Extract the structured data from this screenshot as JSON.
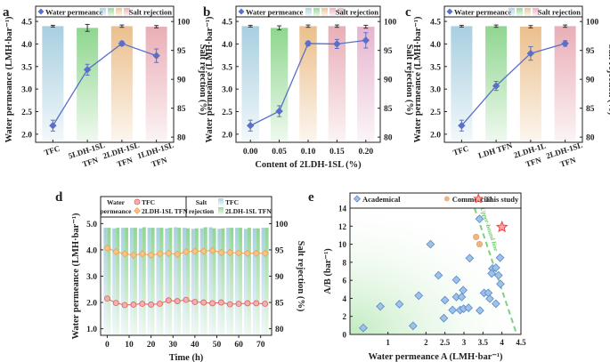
{
  "colors": {
    "line": "#5a6fc8",
    "tfc_d": "#e06060",
    "tfn_d": "#f0a050",
    "bar_blue": "#a8cfe0",
    "bar_green": "#8fd68f",
    "bar_orange": "#ebbf8c",
    "bar_pink": "#e9aeb6",
    "bar_purple": "#e6b5cf",
    "academical": "#9ec3e8",
    "commercial": "#f2b37f",
    "star": "#e84848",
    "bound": "#7fd07f"
  },
  "chart_data": [
    {
      "panel": "a",
      "type": "bar+line",
      "categories": [
        [
          "TFC"
        ],
        [
          "5LDH-1SL",
          "TFN"
        ],
        [
          "2LDH-1SL",
          "TFN"
        ],
        [
          "1LDH-1SL",
          "TFN"
        ]
      ],
      "rotate_labels": true,
      "xlabel": "",
      "ylabel": "Water permeance (LMH·bar⁻¹)",
      "y2label": "Salt rejection (%)",
      "ylim": [
        1.82,
        4.6
      ],
      "y2lim": [
        79.1,
        100.8
      ],
      "yticks": [
        "2.0",
        "2.5",
        "3.0",
        "3.5",
        "4.0",
        "4.5"
      ],
      "y2ticks": [
        "80",
        "85",
        "90",
        "95",
        "100"
      ],
      "legend": {
        "line": "Water permeance",
        "bars": "Salt rejection"
      },
      "bar_colors": [
        "#a8cfe0",
        "#8fd68f",
        "#ebbf8c",
        "#e9aeb6"
      ],
      "salt_rejection": [
        99.2,
        98.9,
        99.2,
        99.1
      ],
      "salt_rejection_err": [
        0.15,
        0.6,
        0.2,
        0.2
      ],
      "water_permeance": [
        2.19,
        3.43,
        4.01,
        3.74
      ],
      "water_permeance_err": [
        0.12,
        0.12,
        0.05,
        0.15
      ]
    },
    {
      "panel": "b",
      "type": "bar+line",
      "categories": [
        [
          "0.00"
        ],
        [
          "0.05"
        ],
        [
          "0.10"
        ],
        [
          "0.15"
        ],
        [
          "0.20"
        ]
      ],
      "rotate_labels": false,
      "xlabel": "Content of 2LDH-1SL (%)",
      "ylabel": "Water permeance (LMH·bar⁻¹)",
      "y2label": "Salt rejection (%)",
      "ylim": [
        1.82,
        4.6
      ],
      "y2lim": [
        79.1,
        100.8
      ],
      "yticks": [
        "2.0",
        "2.5",
        "3.0",
        "3.5",
        "4.0",
        "4.5"
      ],
      "y2ticks": [
        "80",
        "85",
        "90",
        "95",
        "100"
      ],
      "legend": {
        "line": "Water permeance",
        "bars": "Salt rejection"
      },
      "bar_colors": [
        "#a8cfe0",
        "#8fd68f",
        "#ebbf8c",
        "#e9aeb6",
        "#e6b5cf"
      ],
      "salt_rejection": [
        99.2,
        98.9,
        99.2,
        99.2,
        99.1
      ],
      "salt_rejection_err": [
        0.15,
        0.35,
        0.2,
        0.2,
        0.25
      ],
      "water_permeance": [
        2.19,
        2.51,
        4.01,
        4.0,
        4.08
      ],
      "water_permeance_err": [
        0.12,
        0.12,
        0.05,
        0.1,
        0.17
      ]
    },
    {
      "panel": "c",
      "type": "bar+line",
      "categories": [
        [
          "TFC"
        ],
        [
          "LDH TFN"
        ],
        [
          "2LDH-1L",
          "TFN"
        ],
        [
          "2LDH-1SL",
          "TFN"
        ]
      ],
      "rotate_labels": true,
      "xlabel": "",
      "ylabel": "Water permeance (LMH·bar⁻¹)",
      "y2label": "Salt rejection (%)",
      "ylim": [
        1.82,
        4.6
      ],
      "y2lim": [
        79.1,
        100.8
      ],
      "yticks": [
        "2.0",
        "2.5",
        "3.0",
        "3.5",
        "4.0",
        "4.5"
      ],
      "y2ticks": [
        "80",
        "85",
        "90",
        "95",
        "100"
      ],
      "legend": {
        "line": "Water permeance",
        "bars": "Salt rejection"
      },
      "bar_colors": [
        "#a8cfe0",
        "#8fd68f",
        "#ebbf8c",
        "#e9aeb6"
      ],
      "salt_rejection": [
        99.2,
        99.2,
        99.1,
        99.2
      ],
      "salt_rejection_err": [
        0.15,
        0.2,
        0.2,
        0.2
      ],
      "water_permeance": [
        2.19,
        3.07,
        3.79,
        4.01
      ],
      "water_permeance_err": [
        0.12,
        0.1,
        0.15,
        0.06
      ]
    },
    {
      "panel": "d",
      "type": "bar+line",
      "xlabel": "Time (h)",
      "ylabel": "Water permeance (LMH·bar⁻¹)",
      "y2label": "Salt rejection (%)",
      "ylim": [
        0.75,
        5.25
      ],
      "y2lim": [
        78.75,
        101.25
      ],
      "xlim": [
        -3,
        75
      ],
      "xticks": [
        0,
        10,
        20,
        30,
        40,
        50,
        60,
        70
      ],
      "yticks": [
        "1.0",
        "2.0",
        "3.0",
        "4.0",
        "5.0"
      ],
      "y2ticks": [
        "80",
        "85",
        "90",
        "95",
        "100"
      ],
      "legend": {
        "line_title": "Water permeance",
        "bar_title": "Salt rejection",
        "tfc": "TFC",
        "tfn": "2LDH-1SL TFN"
      },
      "time": [
        0,
        4,
        8,
        12,
        16,
        20,
        24,
        28,
        32,
        36,
        40,
        44,
        48,
        52,
        56,
        60,
        64,
        68,
        72
      ],
      "series": [
        {
          "name": "TFC",
          "water_permeance": [
            2.15,
            1.98,
            1.9,
            1.92,
            1.95,
            1.92,
            1.95,
            2.08,
            2.05,
            2.1,
            2.02,
            2.0,
            1.97,
            2.0,
            1.93,
            1.95,
            1.97,
            1.97,
            1.95
          ],
          "salt_rejection": [
            99.2,
            99.1,
            99.2,
            99.2,
            99.1,
            99.2,
            99.2,
            99.1,
            99.3,
            99.2,
            99.0,
            99.1,
            99.3,
            99.0,
            99.2,
            99.2,
            99.0,
            99.1,
            99.2
          ]
        },
        {
          "name": "2LDH-1SL TFN",
          "water_permeance": [
            4.07,
            3.93,
            3.85,
            3.8,
            3.85,
            3.8,
            3.85,
            3.87,
            3.83,
            3.93,
            3.95,
            3.95,
            3.98,
            3.9,
            3.9,
            3.88,
            3.87,
            3.87,
            3.87
          ],
          "salt_rejection": [
            99.2,
            99.2,
            99.2,
            99.2,
            99.3,
            99.2,
            99.2,
            99.2,
            99.2,
            99.1,
            99.1,
            99.3,
            99.1,
            99.1,
            99.2,
            99.2,
            99.2,
            99.1,
            99.2
          ]
        }
      ]
    },
    {
      "panel": "e",
      "type": "scatter",
      "xlabel": "Water permeance A (LMH·bar⁻¹)",
      "ylabel": "A/B (bar⁻¹)",
      "xlim": [
        0,
        4.5
      ],
      "ylim": [
        0,
        14
      ],
      "xticks": [
        "1",
        "2",
        "2.5",
        "3",
        "3.5",
        "4",
        "4.5"
      ],
      "yticks": [
        "0",
        "2",
        "4",
        "6",
        "8",
        "10",
        "12",
        "14"
      ],
      "annotation": "Upper-bound line",
      "upper_bound": [
        [
          3.28,
          14
        ],
        [
          4.39,
          0
        ]
      ],
      "series": [
        {
          "name": "Academical",
          "points": [
            [
              0.35,
              0.72
            ],
            [
              0.8,
              3.1
            ],
            [
              1.3,
              3.35
            ],
            [
              1.66,
              0.95
            ],
            [
              1.81,
              4.3
            ],
            [
              2.12,
              10.0
            ],
            [
              2.33,
              6.55
            ],
            [
              2.5,
              3.8
            ],
            [
              2.47,
              1.8
            ],
            [
              2.7,
              2.7
            ],
            [
              2.8,
              6.05
            ],
            [
              2.8,
              4.15
            ],
            [
              2.9,
              2.7
            ],
            [
              2.94,
              4.15
            ],
            [
              2.98,
              4.9
            ],
            [
              2.99,
              2.85
            ],
            [
              3.12,
              2.95
            ],
            [
              3.15,
              8.45
            ],
            [
              3.41,
              12.8
            ],
            [
              3.42,
              2.65
            ],
            [
              3.53,
              4.6
            ],
            [
              3.64,
              4.6
            ],
            [
              3.68,
              3.95
            ],
            [
              3.75,
              7.3
            ],
            [
              3.73,
              6.75
            ],
            [
              3.84,
              7.4
            ],
            [
              3.84,
              3.4
            ],
            [
              3.91,
              6.55
            ],
            [
              3.95,
              8.5
            ],
            [
              3.96,
              5.6
            ]
          ]
        },
        {
          "name": "Commercial",
          "points": [
            [
              3.32,
              10.8
            ],
            [
              3.41,
              10.0
            ]
          ]
        },
        {
          "name": "This study",
          "points": [
            [
              4.0,
              11.9
            ]
          ]
        }
      ]
    }
  ]
}
